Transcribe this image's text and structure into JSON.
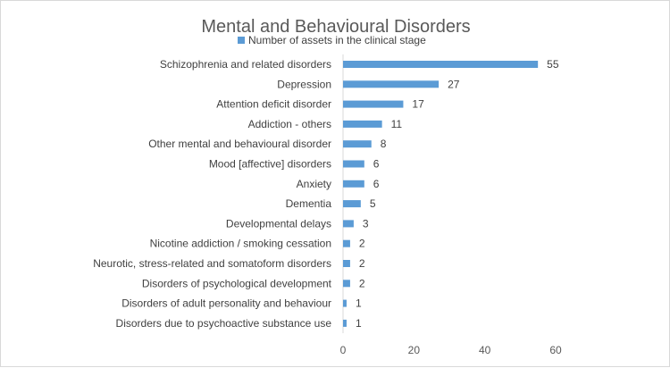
{
  "chart_data": {
    "type": "bar",
    "orientation": "horizontal",
    "title": "Mental and Behavioural Disorders",
    "legend_position": "top",
    "grid": false,
    "series": [
      {
        "name": "Number of assets in the clinical stage",
        "color": "#5b9bd5",
        "values": [
          55,
          27,
          17,
          11,
          8,
          6,
          6,
          5,
          3,
          2,
          2,
          2,
          1,
          1
        ]
      }
    ],
    "categories": [
      "Schizophrenia and related disorders",
      "Depression",
      "Attention deficit disorder",
      "Addiction - others",
      "Other mental and behavioural disorder",
      "Mood [affective] disorders",
      "Anxiety",
      "Dementia",
      "Developmental delays",
      "Nicotine addiction / smoking cessation",
      "Neurotic, stress-related and somatoform disorders",
      "Disorders of psychological development",
      "Disorders of adult personality and behaviour",
      "Disorders due to psychoactive substance use"
    ],
    "xlim": [
      0,
      60
    ],
    "xticks": [
      0,
      20,
      40,
      60
    ],
    "xlabel": "",
    "ylabel": ""
  }
}
